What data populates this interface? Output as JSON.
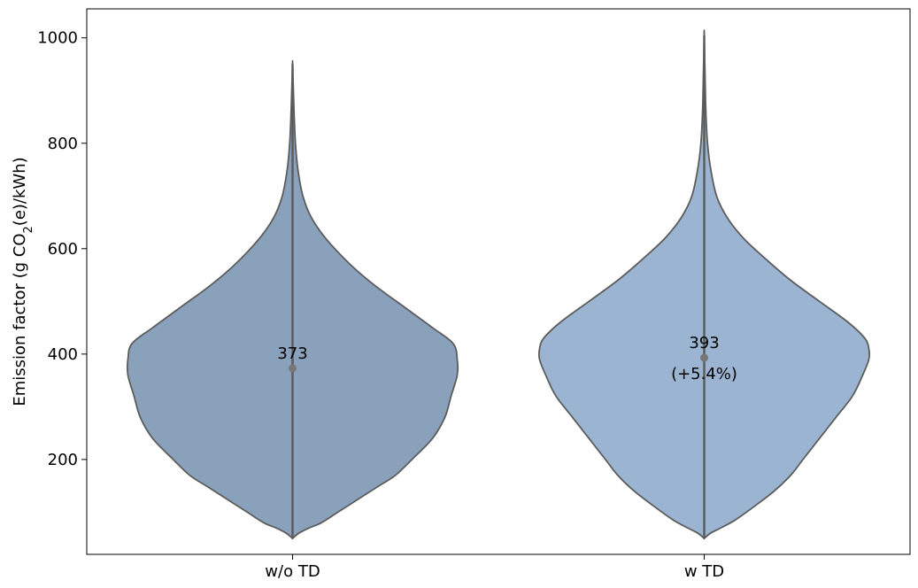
{
  "chart_data": {
    "type": "violin",
    "title": "",
    "xlabel": "",
    "ylabel_parts": [
      "Emission factor (g CO",
      "2",
      "(e)/kWh)"
    ],
    "categories": [
      "w/o TD",
      "w TD"
    ],
    "ylim": [
      20,
      1055
    ],
    "yticks": [
      200,
      400,
      600,
      800,
      1000
    ],
    "grid": false,
    "colors": [
      "#8aa1bc",
      "#9ab4d2"
    ],
    "edge_color": "#5c5c5c",
    "median_color": "#777777",
    "max_half_width": 0.4,
    "violins": [
      {
        "name": "w/o TD",
        "median": 373,
        "median_label": "373",
        "change_label": "",
        "min": 50,
        "max": 950,
        "profile": [
          [
            50,
            0.0
          ],
          [
            60,
            0.015
          ],
          [
            70,
            0.04
          ],
          [
            80,
            0.07
          ],
          [
            100,
            0.11
          ],
          [
            130,
            0.17
          ],
          [
            150,
            0.21
          ],
          [
            170,
            0.25
          ],
          [
            200,
            0.29
          ],
          [
            240,
            0.34
          ],
          [
            280,
            0.37
          ],
          [
            320,
            0.385
          ],
          [
            360,
            0.4
          ],
          [
            390,
            0.4
          ],
          [
            420,
            0.39
          ],
          [
            450,
            0.34
          ],
          [
            490,
            0.27
          ],
          [
            530,
            0.2
          ],
          [
            570,
            0.14
          ],
          [
            620,
            0.08
          ],
          [
            660,
            0.045
          ],
          [
            700,
            0.025
          ],
          [
            750,
            0.013
          ],
          [
            800,
            0.007
          ],
          [
            850,
            0.004
          ],
          [
            900,
            0.002
          ],
          [
            950,
            0.0
          ]
        ]
      },
      {
        "name": "w TD",
        "median": 393,
        "median_label": "393",
        "change_label": "(+5.4%)",
        "min": 50,
        "max": 1005,
        "profile": [
          [
            50,
            0.0
          ],
          [
            60,
            0.015
          ],
          [
            70,
            0.04
          ],
          [
            85,
            0.075
          ],
          [
            110,
            0.12
          ],
          [
            140,
            0.17
          ],
          [
            170,
            0.21
          ],
          [
            200,
            0.24
          ],
          [
            240,
            0.28
          ],
          [
            280,
            0.32
          ],
          [
            320,
            0.36
          ],
          [
            360,
            0.385
          ],
          [
            390,
            0.4
          ],
          [
            410,
            0.4
          ],
          [
            430,
            0.39
          ],
          [
            460,
            0.35
          ],
          [
            500,
            0.28
          ],
          [
            540,
            0.21
          ],
          [
            580,
            0.15
          ],
          [
            620,
            0.095
          ],
          [
            660,
            0.055
          ],
          [
            700,
            0.03
          ],
          [
            750,
            0.016
          ],
          [
            800,
            0.008
          ],
          [
            860,
            0.004
          ],
          [
            930,
            0.002
          ],
          [
            1005,
            0.0
          ]
        ]
      }
    ]
  }
}
